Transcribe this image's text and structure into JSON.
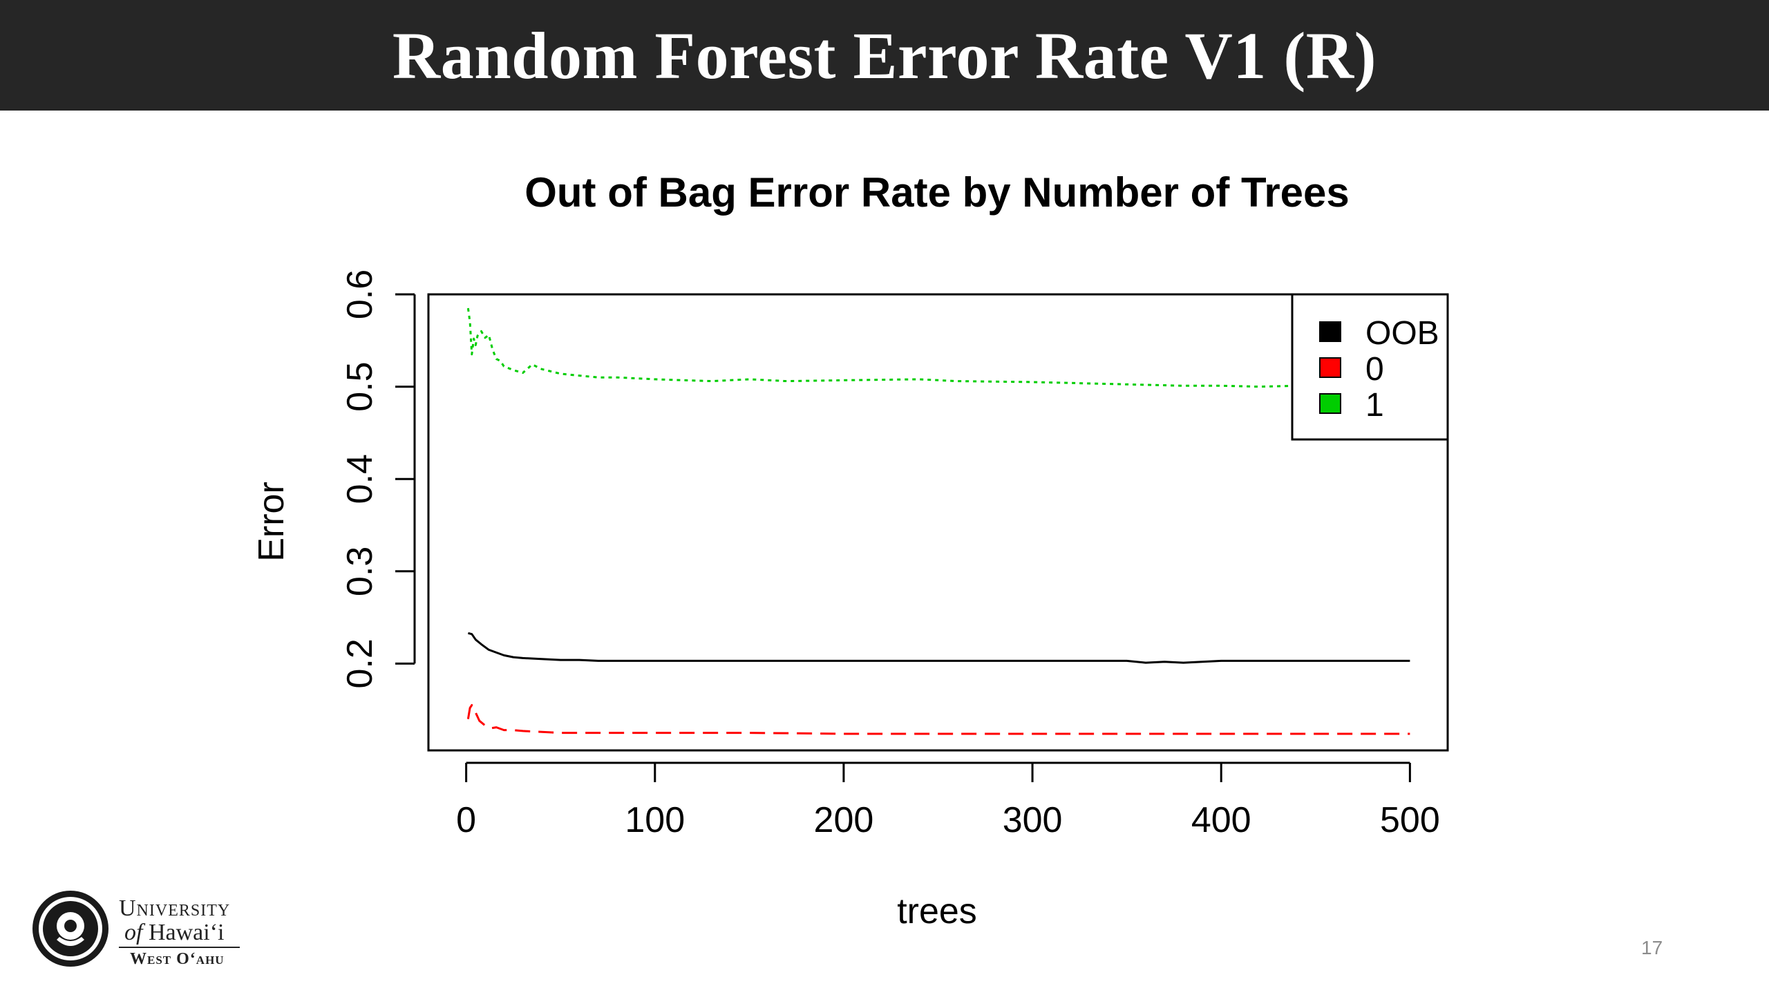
{
  "slide": {
    "title": "Random Forest Error Rate V1 (R)",
    "number": "17"
  },
  "logo": {
    "line1": "University",
    "line2_of": "of",
    "line2_name": "Hawaiʻi",
    "line3": "West Oʻahu"
  },
  "colors": {
    "title_bar": "#262626",
    "oob": "#000000",
    "class0": "#ff0000",
    "class1": "#00cd00"
  },
  "chart_data": {
    "type": "line",
    "title": "Out of Bag Error Rate by Number of Trees",
    "xlabel": "trees",
    "ylabel": "Error",
    "xlim": [
      -20,
      520
    ],
    "ylim": [
      0.106,
      0.6
    ],
    "xticks": [
      "0",
      "100",
      "200",
      "300",
      "400",
      "500"
    ],
    "yticks": [
      "0.2",
      "0.3",
      "0.4",
      "0.5",
      "0.6"
    ],
    "legend_position": "top-right",
    "legend": [
      "OOB",
      "0",
      "1"
    ],
    "series": [
      {
        "name": "OOB",
        "color": "#000000",
        "dash": "solid",
        "x": [
          1,
          3,
          5,
          8,
          12,
          16,
          20,
          25,
          30,
          40,
          50,
          60,
          70,
          80,
          100,
          150,
          200,
          250,
          300,
          350,
          360,
          370,
          380,
          390,
          400,
          450,
          500
        ],
        "y": [
          0.233,
          0.232,
          0.226,
          0.221,
          0.215,
          0.212,
          0.209,
          0.207,
          0.206,
          0.205,
          0.204,
          0.204,
          0.203,
          0.203,
          0.203,
          0.203,
          0.203,
          0.203,
          0.203,
          0.203,
          0.201,
          0.202,
          0.201,
          0.202,
          0.203,
          0.203,
          0.203
        ]
      },
      {
        "name": "0",
        "color": "#ff0000",
        "dash": "dashed",
        "x": [
          1,
          2,
          3,
          5,
          7,
          10,
          13,
          16,
          20,
          25,
          30,
          40,
          50,
          60,
          80,
          100,
          150,
          200,
          250,
          300,
          350,
          400,
          450,
          500
        ],
        "y": [
          0.14,
          0.152,
          0.155,
          0.147,
          0.138,
          0.133,
          0.13,
          0.131,
          0.128,
          0.128,
          0.127,
          0.126,
          0.125,
          0.125,
          0.125,
          0.125,
          0.125,
          0.124,
          0.124,
          0.124,
          0.124,
          0.124,
          0.124,
          0.124
        ]
      },
      {
        "name": "1",
        "color": "#00cd00",
        "dash": "dotted",
        "x": [
          1,
          2,
          3,
          4,
          5,
          6,
          8,
          10,
          12,
          14,
          16,
          18,
          20,
          25,
          30,
          35,
          40,
          50,
          60,
          70,
          80,
          100,
          130,
          150,
          170,
          200,
          240,
          260,
          300,
          340,
          360,
          380,
          400,
          420,
          440,
          460,
          480,
          500
        ],
        "y": [
          0.585,
          0.57,
          0.535,
          0.552,
          0.545,
          0.555,
          0.56,
          0.553,
          0.556,
          0.54,
          0.53,
          0.528,
          0.522,
          0.518,
          0.515,
          0.524,
          0.519,
          0.514,
          0.512,
          0.51,
          0.51,
          0.508,
          0.506,
          0.508,
          0.506,
          0.507,
          0.508,
          0.506,
          0.505,
          0.503,
          0.502,
          0.501,
          0.501,
          0.5,
          0.501,
          0.502,
          0.503,
          0.503
        ]
      }
    ]
  }
}
